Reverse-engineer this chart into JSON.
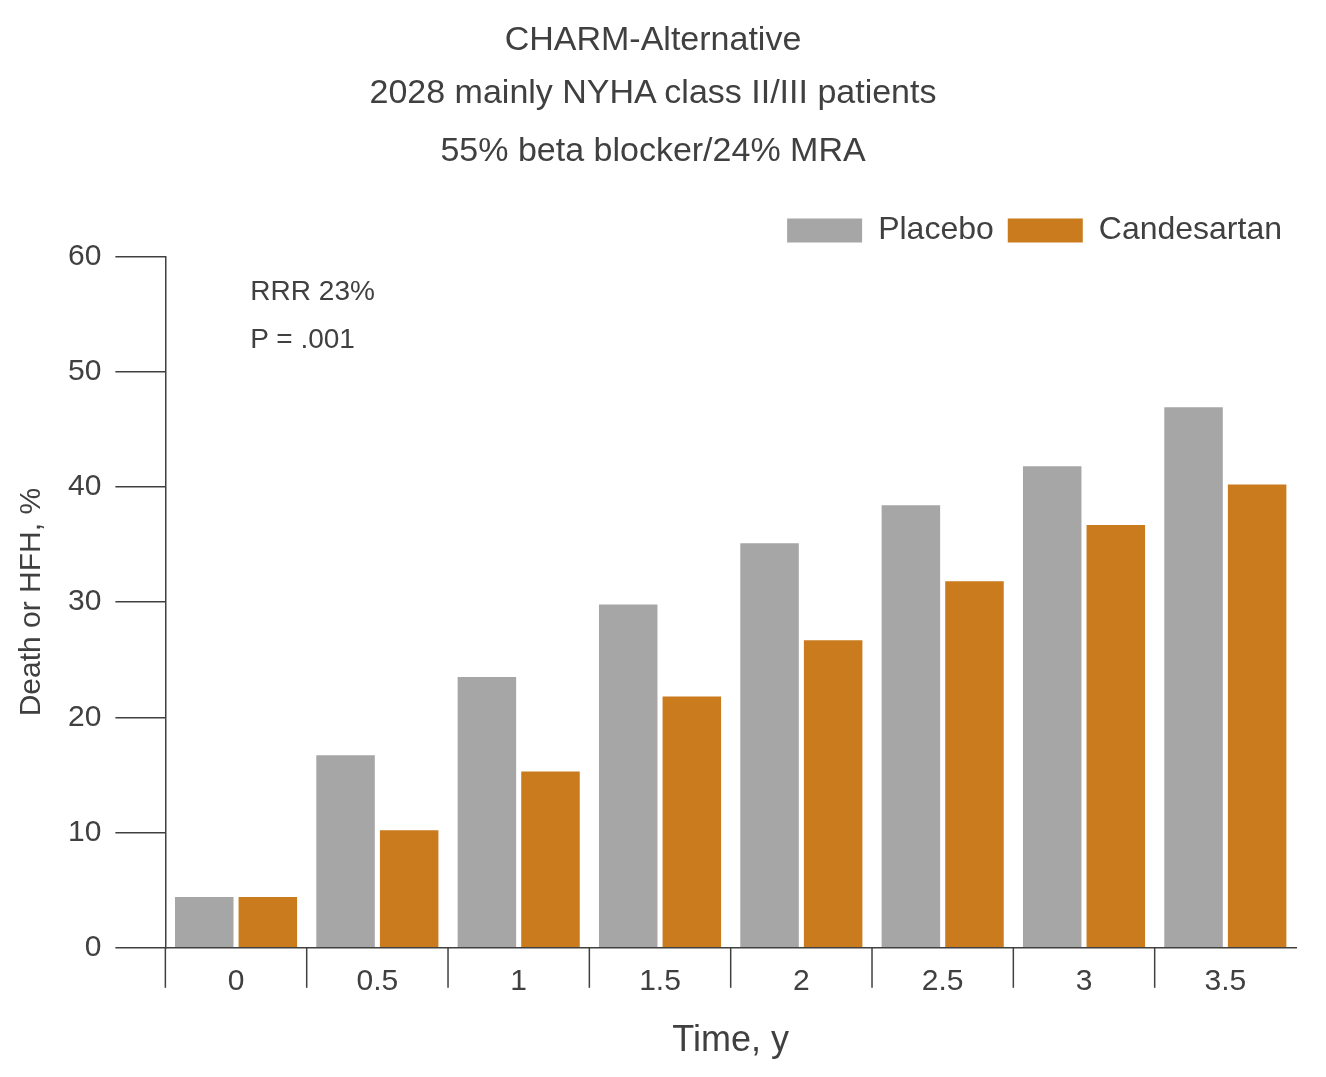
{
  "chart_data": {
    "type": "bar",
    "title": "CHARM-Alternative",
    "subtitle": "2028 mainly NYHA class II/III patients\n55% beta blocker/24% MRA",
    "xlabel": "Time, y",
    "ylabel": "Death or HFH, %",
    "categories": [
      "0",
      "0.5",
      "1",
      "1.5",
      "2",
      "2.5",
      "3",
      "3.5"
    ],
    "series": [
      {
        "name": "Placebo",
        "color": "#a6a6a6",
        "values": [
          4.4,
          16.7,
          23.5,
          29.8,
          35.1,
          38.4,
          41.8,
          46.9
        ]
      },
      {
        "name": "Candesartan",
        "color": "#c97b1e",
        "values": [
          4.4,
          10.2,
          15.3,
          21.8,
          26.7,
          31.8,
          36.7,
          40.2
        ]
      }
    ],
    "ylim": [
      0,
      60
    ],
    "yticks": [
      0,
      10,
      20,
      30,
      40,
      50,
      60
    ],
    "grid": false,
    "legend": "top right",
    "annotations": [
      "RRR 23%",
      "P = .001"
    ]
  }
}
